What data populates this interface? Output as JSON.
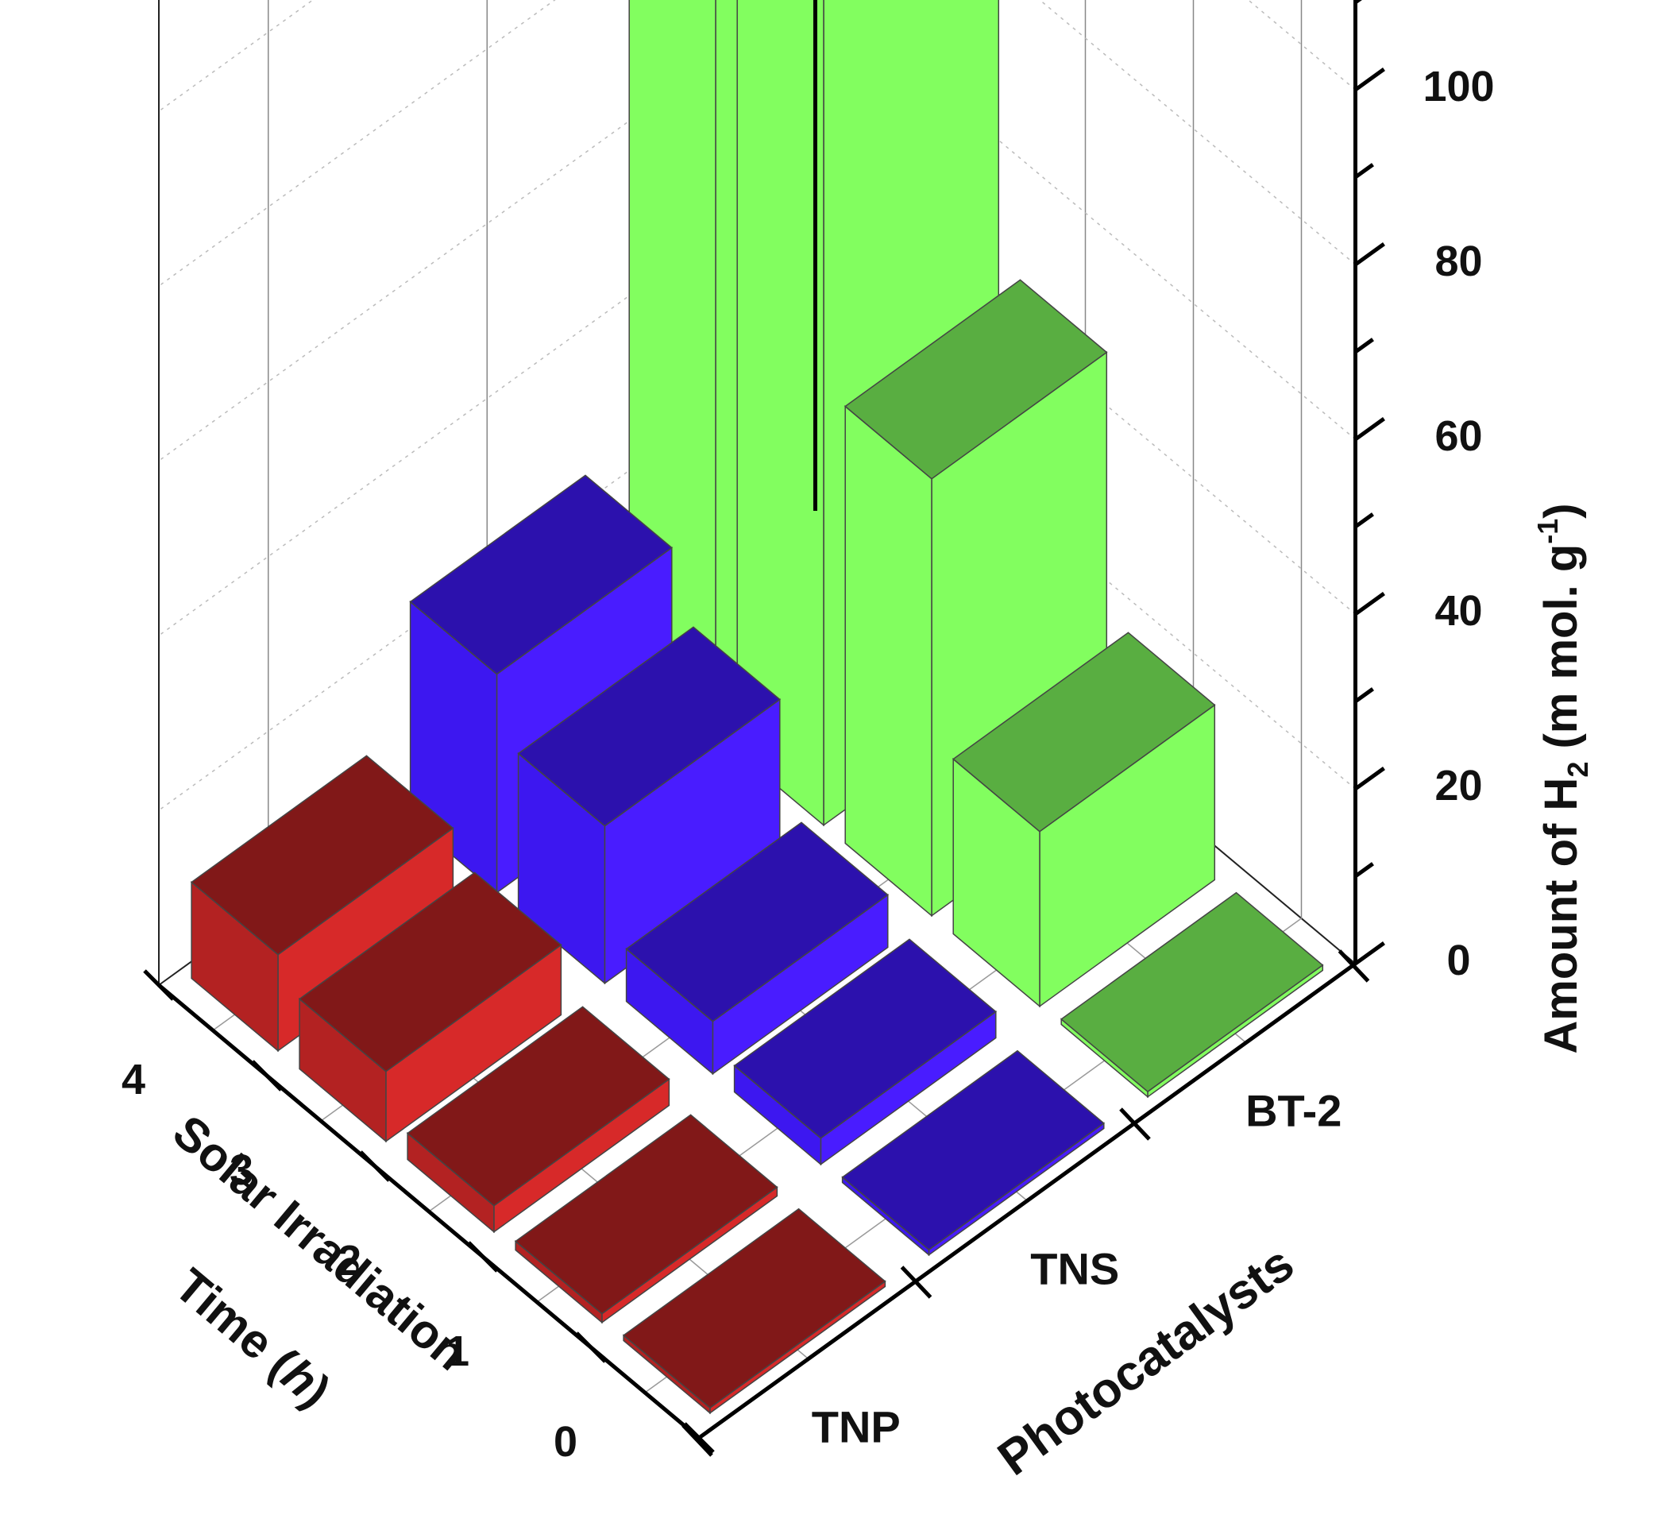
{
  "chart_data": {
    "type": "bar3d",
    "title": "",
    "x_axis": {
      "label": "Photocatalysts",
      "categories": [
        "TNP",
        "TNS",
        "BT-2"
      ]
    },
    "y_axis": {
      "label_parts": [
        "Solar Irradiation",
        "Time (",
        "h",
        ")"
      ],
      "categories": [
        "0",
        "1",
        "2",
        "3",
        "4"
      ]
    },
    "z_axis": {
      "label_parts": [
        "Amount of H",
        "2",
        " (m mol. g",
        "-1",
        ")"
      ],
      "ticks": [
        "0",
        "20",
        "40",
        "60",
        "80",
        "100"
      ],
      "range": [
        0,
        120
      ]
    },
    "grid": true,
    "series": [
      {
        "name": "TNP",
        "color": "#b32222",
        "values": [
          0,
          1,
          3,
          8,
          11
        ]
      },
      {
        "name": "TNS",
        "color": "#3d17f0",
        "values": [
          0,
          3,
          6,
          18,
          25
        ]
      },
      {
        "name": "BT-2",
        "color": "#7cf25a",
        "values": [
          0,
          20,
          50,
          99,
          120
        ]
      }
    ]
  }
}
